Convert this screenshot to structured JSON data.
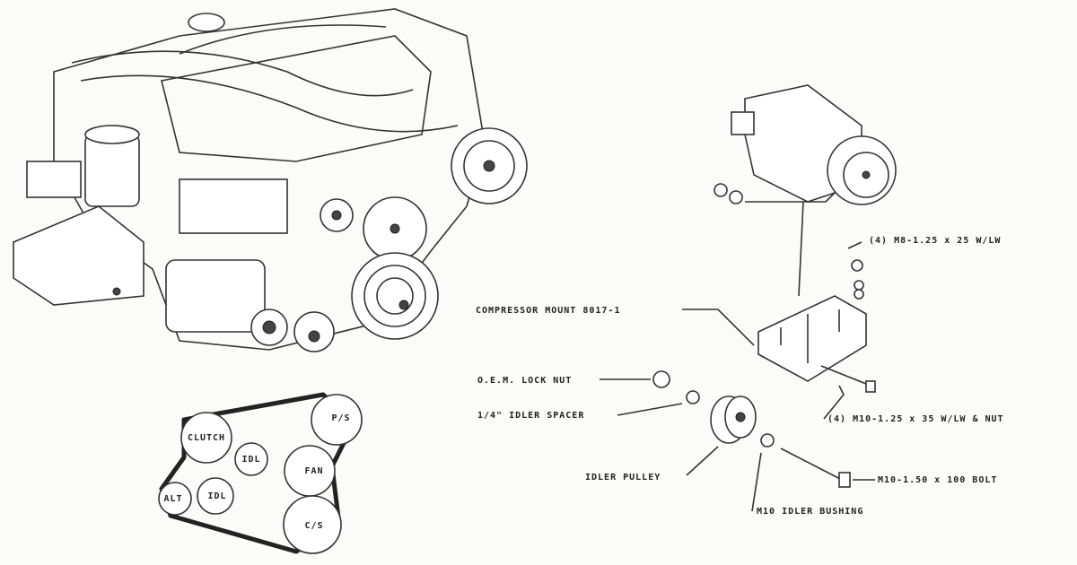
{
  "callouts": [
    "COMPRESSOR MOUNT 8017-1",
    "(4) M8-1.25 x 25 W/LW",
    "O.E.M. LOCK NUT",
    "1/4\" IDLER SPACER",
    "(4) M10-1.25 x 35 W/LW & NUT",
    "IDLER PULLEY",
    "M10 IDLER BUSHING",
    "M10-1.50 x 100 BOLT"
  ],
  "belt_diagram": {
    "pulleys": [
      "CLUTCH",
      "IDL",
      "P/S",
      "FAN",
      "ALT",
      "IDL",
      "C/S"
    ]
  }
}
